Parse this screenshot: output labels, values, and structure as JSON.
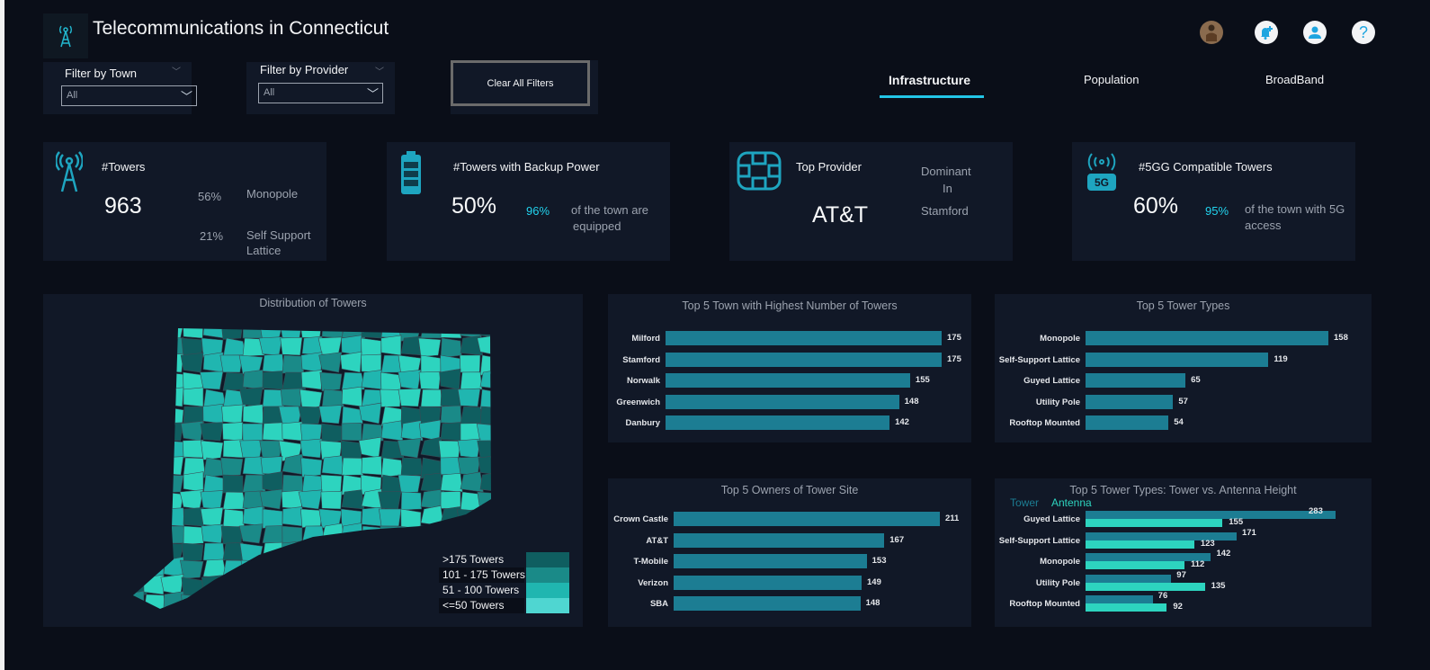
{
  "header": {
    "title": "Telecommunications in Connecticut",
    "icons": [
      "tower-icon",
      "avatar",
      "bell-plus-icon",
      "user-icon",
      "help-icon"
    ]
  },
  "filters": [
    {
      "label": "Filter by Town",
      "value": "All"
    },
    {
      "label": "Filter by Provider",
      "value": "All"
    }
  ],
  "clear_label": "Clear All Filters",
  "tabs": [
    {
      "label": "Infrastructure",
      "active": true
    },
    {
      "label": "Population"
    },
    {
      "label": "BroadBand"
    }
  ],
  "kpis": {
    "towers": {
      "title": "#Towers",
      "value": "963",
      "p1": "56%",
      "l1": "Monopole",
      "p2": "21%",
      "l2a": "Self Support",
      "l2b": "Lattice"
    },
    "backup": {
      "title": "#Towers with Backup Power",
      "value": "50%",
      "pct": "96%",
      "t1": "of the town are",
      "t2": "equipped"
    },
    "provider": {
      "title": "Top Provider",
      "value": "AT&T",
      "d1": "Dominant",
      "d2": "In",
      "d3": "Stamford"
    },
    "fiveg": {
      "title": "#5GG Compatible Towers",
      "value": "60%",
      "pct": "95%",
      "t1": "of the town with 5G",
      "t2": "access"
    }
  },
  "map": {
    "title": "Distribution of Towers",
    "legend": [
      {
        "label": ">175 Towers",
        "color": "#0f5e60"
      },
      {
        "label": "101 - 175 Towers",
        "color": "#1a8a88"
      },
      {
        "label": "51 - 100 Towers",
        "color": "#20b6b0"
      },
      {
        "label": "<=50 Towers",
        "color": "#4fd6d1"
      }
    ]
  },
  "colors": {
    "tower": "#1c7d93",
    "antenna": "#2dd4bf",
    "map_base": "#2dd4bf"
  },
  "chart_data": [
    {
      "type": "bar",
      "title": "Top 5 Town with Highest Number of Towers",
      "categories": [
        "Milford",
        "Stamford",
        "Norwalk",
        "Greenwich",
        "Danbury"
      ],
      "values": [
        175,
        175,
        155,
        148,
        142
      ]
    },
    {
      "type": "bar",
      "title": "Top 5 Tower Types",
      "categories": [
        "Monopole",
        "Self-Support Lattice",
        "Guyed Lattice",
        "Utility Pole",
        "Rooftop Mounted"
      ],
      "values": [
        158,
        119,
        65,
        57,
        54
      ]
    },
    {
      "type": "bar",
      "title": "Top 5 Owners of Tower Site",
      "categories": [
        "Crown Castle",
        "AT&T",
        "T-Mobile",
        "Verizon",
        "SBA"
      ],
      "values": [
        211,
        167,
        153,
        149,
        148
      ]
    },
    {
      "type": "bar",
      "title": "Top 5 Tower Types: Tower vs. Antenna Height",
      "categories": [
        "Guyed Lattice",
        "Self-Support Lattice",
        "Monopole",
        "Utility Pole",
        "Rooftop Mounted"
      ],
      "series": [
        {
          "name": "Tower",
          "values": [
            283,
            171,
            142,
            97,
            76
          ]
        },
        {
          "name": "Antenna",
          "values": [
            155,
            123,
            112,
            135,
            92
          ]
        }
      ]
    }
  ]
}
